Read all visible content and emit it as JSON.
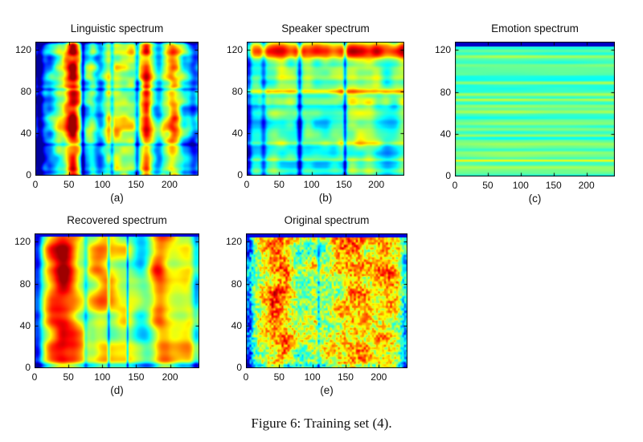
{
  "figure": {
    "caption": "Figure 6: Training set (4).",
    "kind": "Five MATLAB jet-colormap spectrogram panels on a white page"
  },
  "colormap": "jet",
  "axes": {
    "x_ticks": [
      0,
      50,
      100,
      150,
      200
    ],
    "y_ticks": [
      0,
      40,
      80,
      120
    ],
    "x_max": 242,
    "y_max": 128
  },
  "chart_data": [
    {
      "type": "heatmap",
      "title": "Linguistic spectrum",
      "panel_label": "(a)",
      "xlabel": "",
      "ylabel": "",
      "x_range": [
        0,
        242
      ],
      "y_range": [
        0,
        128
      ],
      "x_ticks": [
        0,
        50,
        100,
        150,
        200
      ],
      "y_ticks": [
        0,
        40,
        80,
        120
      ],
      "colormap": "jet",
      "description": "Dense vertical red/orange streaks over a cyan-yellow background; blue columns near t=0, 70, 115, 150 and at the right edge; fine horizontal banding.",
      "texture": {
        "seed": 11,
        "base": 0.52,
        "grad": 0,
        "col": {
          "amp": 0.26,
          "freq": 13
        },
        "row": {
          "amp": 0.1,
          "freq": 26
        },
        "noise": {
          "amp": 0.13,
          "fx": 22,
          "fy": 16
        },
        "cols": [
          {
            "c": 0.02,
            "w": 0.02,
            "a": -0.4
          },
          {
            "c": 0.29,
            "w": 0.008,
            "a": -0.28
          },
          {
            "c": 0.47,
            "w": 0.009,
            "a": -0.22
          },
          {
            "c": 0.625,
            "w": 0.01,
            "a": -0.28
          },
          {
            "c": 0.975,
            "w": 0.025,
            "a": -0.3
          },
          {
            "c": 0.23,
            "w": 0.03,
            "a": 0.22
          },
          {
            "c": 0.345,
            "w": 0.022,
            "a": 0.18
          },
          {
            "c": 0.68,
            "w": 0.018,
            "a": 0.22
          },
          {
            "c": 0.785,
            "w": 0.018,
            "a": 0.18
          }
        ],
        "bands": [
          {
            "c": 0.645,
            "w": 0.01,
            "a": -0.16
          },
          {
            "c": 0.23,
            "w": 0.009,
            "a": -0.12
          },
          {
            "c": 0.998,
            "w": 0.008,
            "a": -0.25
          },
          {
            "c": 0.02,
            "w": 0.012,
            "a": -0.12
          }
        ]
      }
    },
    {
      "type": "heatmap",
      "title": "Speaker spectrum",
      "panel_label": "(b)",
      "xlabel": "",
      "ylabel": "",
      "x_range": [
        0,
        242
      ],
      "y_range": [
        0,
        128
      ],
      "x_ticks": [
        0,
        50,
        100,
        150,
        200
      ],
      "y_ticks": [
        0,
        40,
        80,
        120
      ],
      "colormap": "jet",
      "description": "Green-cyan field with strong horizontal red bands near f=80 and f=115-125, weaker ones near f=15 and f=30; vertical dark-blue streaks near t=25, 80 and 150; bluish left edge.",
      "texture": {
        "seed": 22,
        "base": 0.47,
        "grad": 0.09,
        "col": {
          "amp": 0.07,
          "freq": 10
        },
        "row": {
          "amp": 0.08,
          "freq": 30
        },
        "noise": {
          "amp": 0.09,
          "fx": 18,
          "fy": 13
        },
        "cols": [
          {
            "c": 0.008,
            "w": 0.015,
            "a": -0.32
          },
          {
            "c": 0.105,
            "w": 0.012,
            "a": -0.2
          },
          {
            "c": 0.335,
            "w": 0.011,
            "a": -0.3
          },
          {
            "c": 0.625,
            "w": 0.008,
            "a": -0.3
          }
        ],
        "bands": [
          {
            "c": 0.93,
            "w": 0.045,
            "a": 0.28
          },
          {
            "c": 0.63,
            "w": 0.014,
            "a": 0.28
          },
          {
            "c": 0.24,
            "w": 0.011,
            "a": 0.15
          },
          {
            "c": 0.115,
            "w": 0.009,
            "a": 0.12
          },
          {
            "c": 0.52,
            "w": 0.01,
            "a": -0.1
          }
        ]
      }
    },
    {
      "type": "heatmap",
      "title": "Emotion spectrum",
      "panel_label": "(c)",
      "xlabel": "",
      "ylabel": "",
      "x_range": [
        0,
        242
      ],
      "y_range": [
        0,
        128
      ],
      "x_ticks": [
        0,
        50,
        100,
        150,
        200
      ],
      "y_ticks": [
        0,
        40,
        80,
        120
      ],
      "colormap": "jet",
      "description": "Time-constant horizontal stripes alternating cyan and yellow-green across the whole width; solid dark-blue band along the top edge; orange stripe near f=15.",
      "texture": {
        "seed": 33,
        "base": 0.465,
        "grad": 0,
        "col": {
          "amp": 0,
          "freq": 2
        },
        "row": {
          "amp": 0.08,
          "freq": 46
        },
        "noise": {
          "amp": 0.02,
          "fx": 3,
          "fy": 46
        },
        "cols": [],
        "bands": [
          {
            "c": 0.115,
            "w": 0.006,
            "a": 0.2
          },
          {
            "c": 0.57,
            "w": 0.005,
            "a": 0.08
          },
          {
            "c": 0.3,
            "w": 0.005,
            "a": 0.06
          }
        ],
        "top": {
          "h": 0.035,
          "v": 0.07
        }
      }
    },
    {
      "type": "heatmap",
      "title": "Recovered spectrum",
      "panel_label": "(d)",
      "xlabel": "",
      "ylabel": "",
      "x_range": [
        0,
        242
      ],
      "y_range": [
        0,
        128
      ],
      "x_ticks": [
        0,
        50,
        100,
        150,
        200
      ],
      "y_ticks": [
        0,
        40,
        80,
        120
      ],
      "colormap": "jet",
      "description": "Smooth saturated red-orange vertical formant bands over yellow; narrow cyan margins on left and right; thin cyan gaps near t=110 and 135; thin dark-blue band at top edge.",
      "texture": {
        "seed": 44,
        "base": 0.6,
        "grad": 0,
        "col": {
          "amp": 0.2,
          "freq": 9
        },
        "row": {
          "amp": 0.05,
          "freq": 18
        },
        "noise": {
          "amp": 0.15,
          "fx": 11,
          "fy": 8
        },
        "cols": [
          {
            "c": 0.015,
            "w": 0.022,
            "a": -0.26
          },
          {
            "c": 0.985,
            "w": 0.02,
            "a": -0.28
          },
          {
            "c": 0.45,
            "w": 0.006,
            "a": -0.26
          },
          {
            "c": 0.565,
            "w": 0.005,
            "a": -0.28
          },
          {
            "c": 0.31,
            "w": 0.009,
            "a": -0.15
          },
          {
            "c": 0.17,
            "w": 0.05,
            "a": 0.12
          },
          {
            "c": 0.4,
            "w": 0.04,
            "a": 0.1
          },
          {
            "c": 0.75,
            "w": 0.05,
            "a": 0.12
          }
        ],
        "bands": [
          {
            "c": 0.02,
            "w": 0.015,
            "a": -0.22
          }
        ],
        "top": {
          "h": 0.02,
          "v": 0.1
        }
      }
    },
    {
      "type": "heatmap",
      "title": "Original spectrum",
      "panel_label": "(e)",
      "xlabel": "",
      "ylabel": "",
      "x_range": [
        0,
        242
      ],
      "y_range": [
        0,
        128
      ],
      "x_ticks": [
        0,
        50,
        100,
        150,
        200
      ],
      "y_ticks": [
        0,
        40,
        80,
        120
      ],
      "colormap": "jet",
      "description": "Noisy speckled spectrogram matching the recovered panel: red harmonic streaks over yellow-green with fine texture; cyan margins and speckled blue bottom edge; dark-blue top edge.",
      "texture": {
        "seed": 55,
        "base": 0.575,
        "grad": 0,
        "col": {
          "amp": 0.17,
          "freq": 9
        },
        "row": {
          "amp": 0.05,
          "freq": 20
        },
        "noise": {
          "amp": 0.13,
          "fx": 12,
          "fy": 9
        },
        "speckle": {
          "amp": 0.15,
          "fx": 80,
          "fy": 55
        },
        "cols": [
          {
            "c": 0.015,
            "w": 0.02,
            "a": -0.22
          },
          {
            "c": 0.985,
            "w": 0.018,
            "a": -0.22
          },
          {
            "c": 0.45,
            "w": 0.006,
            "a": -0.18
          },
          {
            "c": 0.17,
            "w": 0.05,
            "a": 0.1
          },
          {
            "c": 0.76,
            "w": 0.05,
            "a": 0.1
          }
        ],
        "bands": [
          {
            "c": 0.015,
            "w": 0.012,
            "a": -0.2
          }
        ],
        "top": {
          "h": 0.025,
          "v": 0.1
        }
      }
    }
  ]
}
